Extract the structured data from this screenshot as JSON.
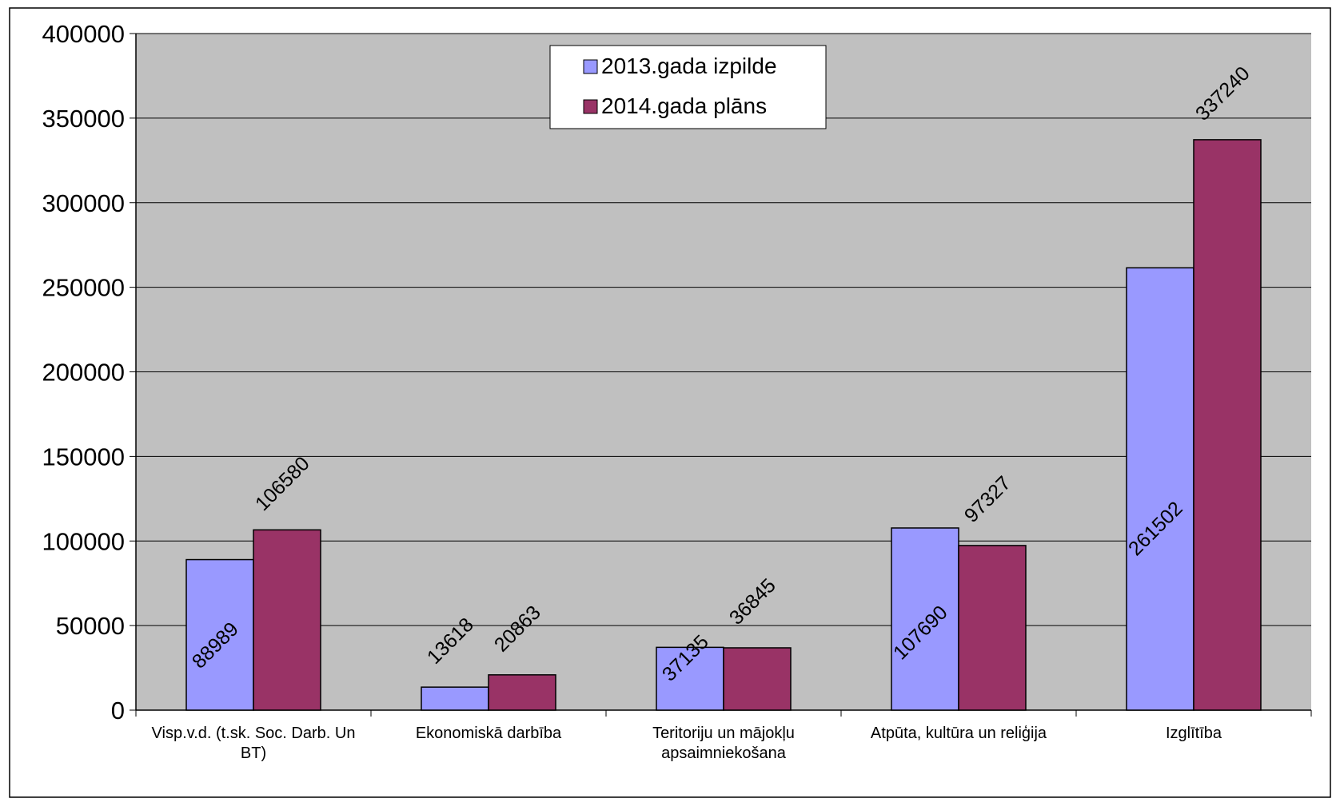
{
  "chart_data": {
    "type": "bar",
    "categories": [
      [
        "Visp.v.d. (t.sk. Soc. Darb. Un",
        "BT)"
      ],
      [
        "Ekonomiskā darbība"
      ],
      [
        "Teritoriju un mājokļu",
        "apsaimniekošana"
      ],
      [
        "Atpūta, kultūra un reliģija"
      ],
      [
        "Izglītība"
      ]
    ],
    "series": [
      {
        "name": "2013.gada izpilde",
        "color": "#9999ff",
        "values": [
          88989,
          13618,
          37135,
          107690,
          261502
        ],
        "labels": [
          "88989",
          "13618",
          "37135",
          "107690",
          "261502"
        ]
      },
      {
        "name": "2014.gada plāns",
        "color": "#993366",
        "values": [
          106580,
          20863,
          36845,
          97327,
          337240
        ],
        "labels": [
          "106580",
          "20863",
          "36845",
          "97327",
          "337240"
        ]
      }
    ],
    "ylim": [
      0,
      400000
    ],
    "yticks": [
      "0",
      "50000",
      "100000",
      "150000",
      "200000",
      "250000",
      "300000",
      "350000",
      "400000"
    ],
    "plot_background": "#c0c0c0",
    "grid": true,
    "legend_position": "top-center"
  }
}
